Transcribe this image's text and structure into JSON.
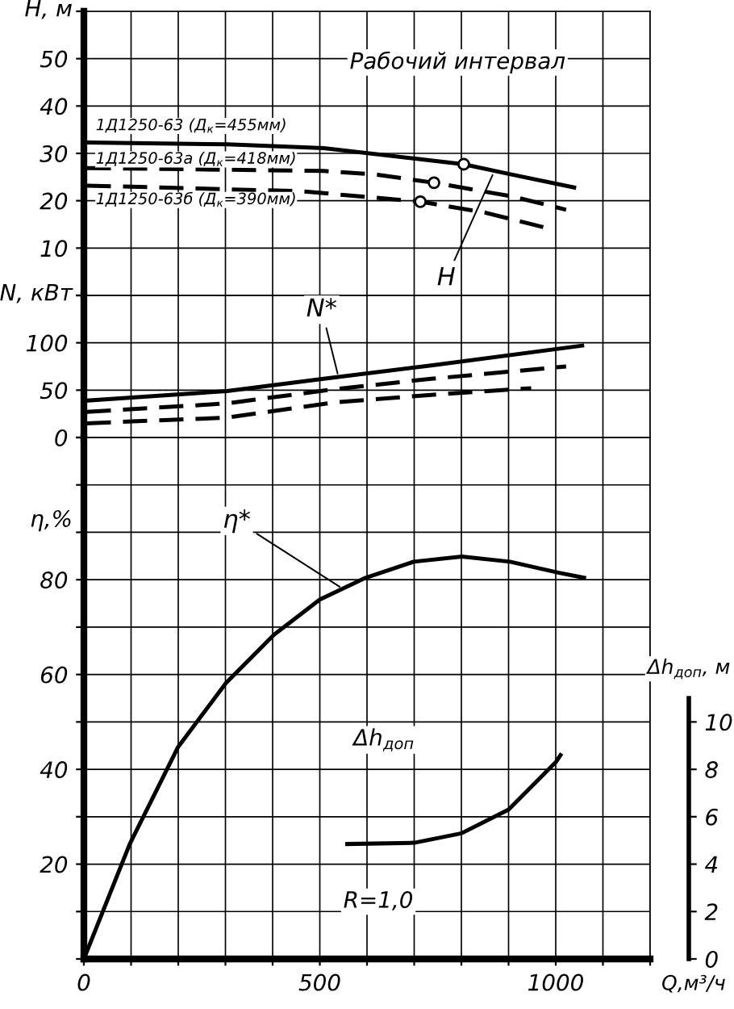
{
  "chart_data": [
    {
      "type": "line",
      "ylabel": "H, м",
      "xlim": [
        0,
        1200
      ],
      "ylim": [
        0,
        60
      ],
      "xticks": [
        {
          "value": 0,
          "label": null
        },
        {
          "value": 100,
          "label": null
        },
        {
          "value": 200,
          "label": null
        },
        {
          "value": 300,
          "label": null
        },
        {
          "value": 400,
          "label": null
        },
        {
          "value": 500,
          "label": null
        },
        {
          "value": 600,
          "label": null
        },
        {
          "value": 700,
          "label": null
        },
        {
          "value": 800,
          "label": null
        },
        {
          "value": 900,
          "label": null
        },
        {
          "value": 1000,
          "label": null
        },
        {
          "value": 1100,
          "label": null
        },
        {
          "value": 1200,
          "label": null
        }
      ],
      "yticks": [
        {
          "value": 0,
          "label": null
        },
        10,
        20,
        30,
        40,
        50,
        {
          "value": 60,
          "label": null
        }
      ],
      "tick_labels": "y",
      "grid": true,
      "legend": false,
      "series": [
        {
          "name": "1Д1250-63 (Д$_{к}$=455мм)",
          "color": "#000000",
          "line_style": "solid",
          "x": [
            6,
            303,
            508,
            702,
            805,
            908,
            1039
          ],
          "values": [
            32.3,
            31.9,
            31.1,
            28.9,
            27.7,
            25.5,
            22.8
          ]
        },
        {
          "name": "1Д1250-63а (Д$_{к}$=418мм)",
          "color": "#000000",
          "line_style": "dashed",
          "x": [
            6,
            508,
            622,
            742,
            908,
            1022
          ],
          "values": [
            26.9,
            26.3,
            25.5,
            23.8,
            20.9,
            18.1
          ]
        },
        {
          "name": "1Д1250-63б (Д$_{к}$=390мм)",
          "color": "#000000",
          "line_style": "dashed",
          "x": [
            6,
            462,
            713,
            850,
            987
          ],
          "values": [
            23.2,
            22.0,
            19.8,
            17.5,
            14.1
          ]
        },
        {
          "type": "scatter",
          "color": "#000000",
          "marker": "circle",
          "x": [
            805,
            742,
            713
          ],
          "values": [
            27.7,
            23.8,
            19.8
          ]
        }
      ],
      "annotations": [
        "Рабочий интервал",
        {
          "text": "H",
          "x": 870,
          "y": 26.3
        }
      ]
    },
    {
      "type": "line",
      "ylabel": "N, кВт",
      "xlim": [
        0,
        1200
      ],
      "ylim": [
        0,
        150
      ],
      "xticks": [
        {
          "value": 0,
          "label": null
        },
        {
          "value": 100,
          "label": null
        },
        {
          "value": 200,
          "label": null
        },
        {
          "value": 300,
          "label": null
        },
        {
          "value": 400,
          "label": null
        },
        {
          "value": 500,
          "label": null
        },
        {
          "value": 600,
          "label": null
        },
        {
          "value": 700,
          "label": null
        },
        {
          "value": 800,
          "label": null
        },
        {
          "value": 900,
          "label": null
        },
        {
          "value": 1000,
          "label": null
        },
        {
          "value": 1100,
          "label": null
        },
        {
          "value": 1200,
          "label": null
        }
      ],
      "yticks": [
        0,
        50,
        100,
        {
          "value": 150,
          "label": null
        }
      ],
      "tick_labels": "y",
      "grid": true,
      "legend": false,
      "series": [
        {
          "color": "#000000",
          "line_style": "solid",
          "x": [
            6,
            303,
            508,
            736,
            1056
          ],
          "values": [
            39,
            49,
            62,
            76,
            97
          ]
        },
        {
          "color": "#000000",
          "line_style": "dashed",
          "x": [
            6,
            303,
            531,
            736,
            1022
          ],
          "values": [
            27,
            36,
            51,
            62,
            75
          ]
        },
        {
          "color": "#000000",
          "line_style": "dashed",
          "x": [
            6,
            303,
            531,
            736,
            948
          ],
          "values": [
            15,
            21,
            37,
            45,
            52
          ]
        }
      ],
      "annotations": [
        {
          "text": "N*",
          "x": 540,
          "y": 63
        }
      ]
    },
    {
      "type": "line",
      "ylabel": "η,%",
      "xlabel": "Q,м³/ч",
      "y2label": "Δh$_{доп}$, м",
      "xlim": [
        0,
        1200
      ],
      "ylim": [
        0,
        110
      ],
      "y2lim": [
        0,
        22
      ],
      "xticks": [
        0,
        {
          "value": 100,
          "label": null
        },
        {
          "value": 200,
          "label": null
        },
        {
          "value": 300,
          "label": null
        },
        {
          "value": 400,
          "label": null
        },
        500,
        {
          "value": 600,
          "label": null
        },
        {
          "value": 700,
          "label": null
        },
        {
          "value": 800,
          "label": null
        },
        {
          "value": 900,
          "label": null
        },
        1000,
        {
          "value": 1100,
          "label": null
        },
        {
          "value": 1200,
          "label": null
        }
      ],
      "yticks": [
        {
          "value": 0,
          "label": null
        },
        {
          "value": 10,
          "label": null
        },
        20,
        {
          "value": 30,
          "label": null
        },
        40,
        {
          "value": 50,
          "label": null
        },
        60,
        {
          "value": 70,
          "label": null
        },
        80,
        {
          "value": 90,
          "label": null
        },
        {
          "value": 100,
          "label": null
        },
        {
          "value": 110,
          "label": null
        }
      ],
      "y2ticks": [
        0,
        2,
        4,
        6,
        8,
        10
      ],
      "grid": true,
      "legend": false,
      "series": [
        {
          "color": "#000000",
          "line_style": "solid",
          "x": [
            0,
            97,
            199,
            301,
            403,
            500,
            597,
            699,
            801,
            903,
            1005,
            1060
          ],
          "values": [
            0,
            24.2,
            44.6,
            58.2,
            68.4,
            75.8,
            80.4,
            83.8,
            84.9,
            83.8,
            81.5,
            80.4
          ]
        },
        {
          "color": "#000000",
          "line_style": "solid",
          "axis": "y2",
          "x": [
            558,
            700,
            800,
            900,
            1000,
            1010
          ],
          "values": [
            4.85,
            4.9,
            5.3,
            6.3,
            8.3,
            8.6
          ]
        }
      ],
      "annotations": [
        {
          "text": "η*",
          "x": 550,
          "y": 78
        },
        "Δh$_{доп}$",
        "R=1,0"
      ]
    }
  ]
}
